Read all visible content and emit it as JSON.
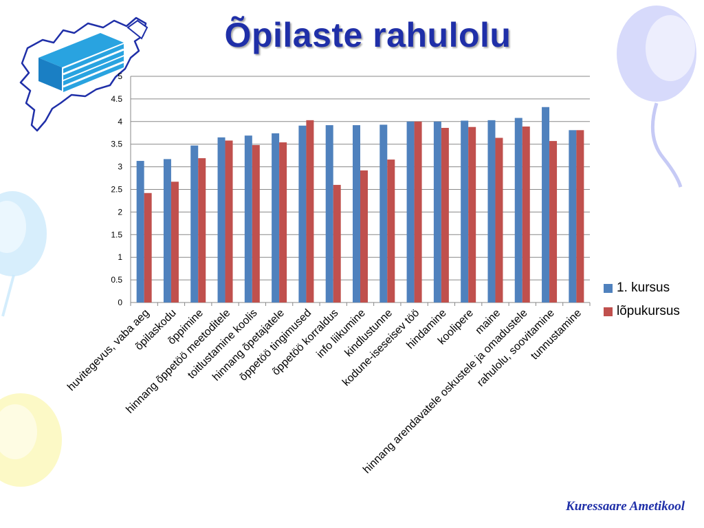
{
  "slide": {
    "title": "Õpilaste rahulolu",
    "footer": "Kuressaare Ametikool"
  },
  "icons": {
    "logo": "saaremaa-map-logo",
    "balloons": "balloon-decoration"
  },
  "colors": {
    "title": "#1f2fa8",
    "series1": "#4f81bd",
    "series2": "#c0504d",
    "grid": "#878787"
  },
  "chart_data": {
    "type": "bar",
    "title": "",
    "xlabel": "",
    "ylabel": "",
    "ylim": [
      0,
      5
    ],
    "yticks": [
      0,
      0.5,
      1,
      1.5,
      2,
      2.5,
      3,
      3.5,
      4,
      4.5,
      5
    ],
    "ytick_labels": [
      "0",
      "0.5",
      "1",
      "1.5",
      "2",
      "2.5",
      "3",
      "3.5",
      "4",
      "4.5",
      "5"
    ],
    "grid": true,
    "legend_position": "right",
    "categories": [
      "huvitegevus, vaba aeg",
      "õpilaskodu",
      "õppimine",
      "hinnang õppetöö meetoditele",
      "toitlustamine koolis",
      "hinnang õpetajatele",
      "õppetöö tingimused",
      "õppetöö korraldus",
      "info liikumine",
      "kindlustunne",
      "kodune-iseseisev töö",
      "hindamine",
      "koolipere",
      "maine",
      "hinnang arendavatele oskustele ja omadustele",
      "rahulolu, soovitamine",
      "tunnustamine"
    ],
    "series": [
      {
        "name": "1. kursus",
        "color": "#4f81bd",
        "values": [
          3.13,
          3.17,
          3.47,
          3.65,
          3.69,
          3.74,
          3.91,
          3.92,
          3.92,
          3.93,
          4.0,
          4.0,
          4.02,
          4.03,
          4.08,
          4.32,
          3.81
        ]
      },
      {
        "name": "lõpukursus",
        "color": "#c0504d",
        "values": [
          2.42,
          2.67,
          3.19,
          3.58,
          3.48,
          3.54,
          4.03,
          2.6,
          2.92,
          3.16,
          4.0,
          3.86,
          3.88,
          3.64,
          3.89,
          3.57,
          3.81
        ]
      }
    ]
  }
}
